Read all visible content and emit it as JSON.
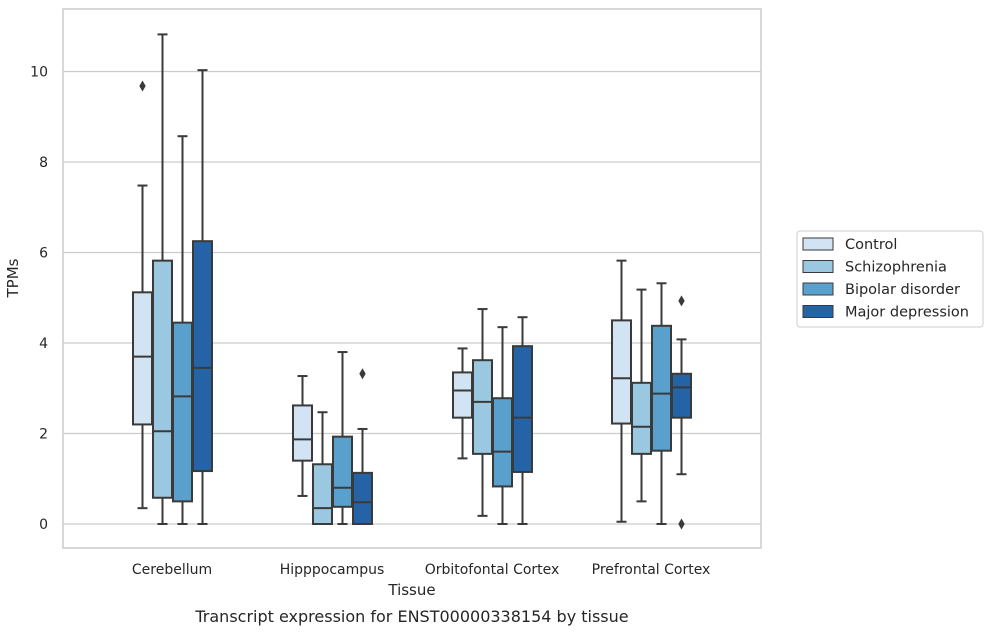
{
  "chart_data": {
    "type": "box",
    "caption": "Transcript expression for ENST00000338154 by tissue",
    "xlabel": "Tissue",
    "ylabel": "TPMs",
    "ylim": [
      -0.5,
      11.4
    ],
    "yticks": [
      0,
      2,
      4,
      6,
      8,
      10
    ],
    "grid": "horizontal",
    "legend_position": "right",
    "categories": [
      "Cerebellum",
      "Hipppocampus",
      "Orbitofontal Cortex",
      "Prefrontal Cortex"
    ],
    "series": [
      {
        "name": "Control",
        "color": "#d2e3f3",
        "boxes": [
          {
            "whisker_low": 0.35,
            "q1": 2.2,
            "median": 3.7,
            "q3": 5.12,
            "whisker_high": 7.48,
            "outliers": [
              9.68
            ]
          },
          {
            "whisker_low": 0.62,
            "q1": 1.4,
            "median": 1.87,
            "q3": 2.62,
            "whisker_high": 3.27,
            "outliers": []
          },
          {
            "whisker_low": 1.45,
            "q1": 2.35,
            "median": 2.95,
            "q3": 3.35,
            "whisker_high": 3.88,
            "outliers": []
          },
          {
            "whisker_low": 0.05,
            "q1": 2.22,
            "median": 3.22,
            "q3": 4.5,
            "whisker_high": 5.82,
            "outliers": []
          }
        ]
      },
      {
        "name": "Schizophrenia",
        "color": "#9ac8e0",
        "boxes": [
          {
            "whisker_low": 0.0,
            "q1": 0.58,
            "median": 2.05,
            "q3": 5.82,
            "whisker_high": 10.82,
            "outliers": []
          },
          {
            "whisker_low": 0.0,
            "q1": 0.0,
            "median": 0.35,
            "q3": 1.32,
            "whisker_high": 2.47,
            "outliers": []
          },
          {
            "whisker_low": 0.18,
            "q1": 1.55,
            "median": 2.7,
            "q3": 3.62,
            "whisker_high": 4.75,
            "outliers": []
          },
          {
            "whisker_low": 0.5,
            "q1": 1.55,
            "median": 2.15,
            "q3": 3.12,
            "whisker_high": 5.18,
            "outliers": []
          }
        ]
      },
      {
        "name": "Bipolar disorder",
        "color": "#5aa0cd",
        "boxes": [
          {
            "whisker_low": 0.0,
            "q1": 0.5,
            "median": 2.82,
            "q3": 4.45,
            "whisker_high": 8.57,
            "outliers": []
          },
          {
            "whisker_low": 0.0,
            "q1": 0.38,
            "median": 0.8,
            "q3": 1.93,
            "whisker_high": 3.8,
            "outliers": []
          },
          {
            "whisker_low": 0.0,
            "q1": 0.83,
            "median": 1.6,
            "q3": 2.78,
            "whisker_high": 4.35,
            "outliers": []
          },
          {
            "whisker_low": 0.0,
            "q1": 1.62,
            "median": 2.88,
            "q3": 4.38,
            "whisker_high": 5.32,
            "outliers": []
          }
        ]
      },
      {
        "name": "Major depression",
        "color": "#2464a6",
        "boxes": [
          {
            "whisker_low": 0.0,
            "q1": 1.17,
            "median": 3.45,
            "q3": 6.25,
            "whisker_high": 10.03,
            "outliers": []
          },
          {
            "whisker_low": 0.0,
            "q1": 0.0,
            "median": 0.48,
            "q3": 1.13,
            "whisker_high": 2.1,
            "outliers": [
              3.32
            ]
          },
          {
            "whisker_low": 0.0,
            "q1": 1.15,
            "median": 2.35,
            "q3": 3.93,
            "whisker_high": 4.57,
            "outliers": []
          },
          {
            "whisker_low": 1.1,
            "q1": 2.35,
            "median": 3.02,
            "q3": 3.32,
            "whisker_high": 4.08,
            "outliers": [
              4.93,
              0.0
            ]
          }
        ]
      }
    ]
  }
}
